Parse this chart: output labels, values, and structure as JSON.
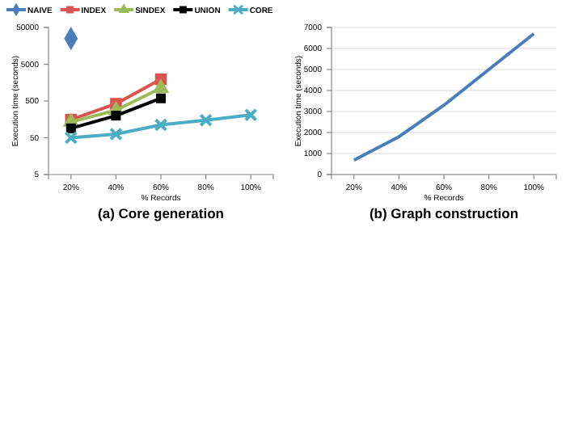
{
  "chart_data": [
    {
      "type": "line",
      "title": "(a) Core generation",
      "xlabel": "% Records",
      "ylabel": "Execution time (seconds)",
      "categories": [
        "20%",
        "40%",
        "60%",
        "80%",
        "100%"
      ],
      "log": true,
      "ylim": [
        5,
        50000
      ],
      "yticks": [
        5,
        50,
        500,
        5000,
        50000
      ],
      "grid": false,
      "legend": "top",
      "series": [
        {
          "name": "NAIVE",
          "color": "#4a7ebb",
          "marker": "diamond",
          "values": [
            25000,
            null,
            null,
            null,
            null
          ]
        },
        {
          "name": "INDEX",
          "color": "#d9534f",
          "marker": "square",
          "values": [
            155,
            420,
            1950,
            null,
            null
          ]
        },
        {
          "name": "SINDEX",
          "color": "#9bbb59",
          "marker": "triangle",
          "values": [
            135,
            280,
            1120,
            null,
            null
          ]
        },
        {
          "name": "UNION",
          "color": "#000000",
          "marker": "square",
          "values": [
            90,
            200,
            590,
            null,
            null
          ]
        },
        {
          "name": "CORE",
          "color": "#4bacc6",
          "marker": "cross",
          "values": [
            50,
            63,
            112,
            150,
            210
          ]
        }
      ]
    },
    {
      "type": "line",
      "title": "(b) Graph construction",
      "xlabel": "% Records",
      "ylabel": "Execution time (seconds)",
      "categories": [
        "20%",
        "40%",
        "60%",
        "80%",
        "100%"
      ],
      "ylim": [
        0,
        7000
      ],
      "yticks": [
        0,
        1000,
        2000,
        3000,
        4000,
        5000,
        6000,
        7000
      ],
      "grid": "y",
      "marker": "none",
      "series": [
        {
          "color": "#4a7ebb",
          "values": [
            680,
            1800,
            3300,
            5000,
            6700
          ]
        }
      ]
    }
  ]
}
